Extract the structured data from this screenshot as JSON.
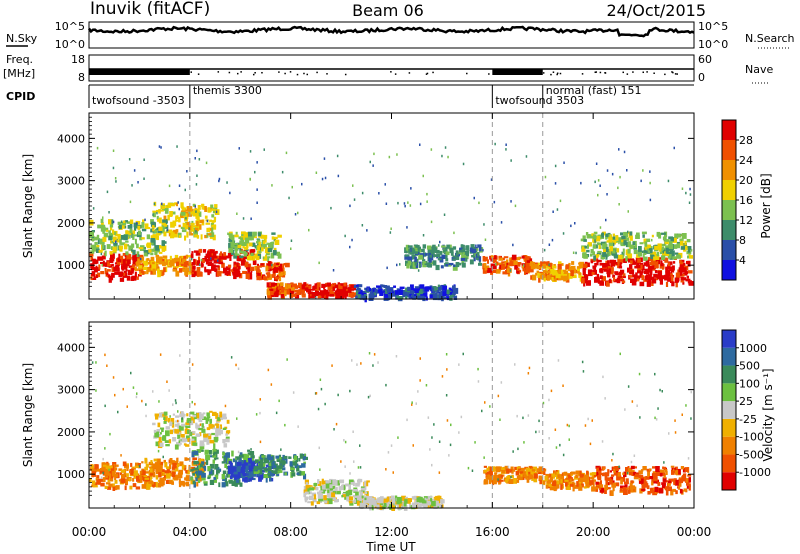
{
  "header": {
    "station": "Inuvik (fitACF)",
    "beam": "Beam 06",
    "date": "24/Oct/2015"
  },
  "time_axis": {
    "label": "Time UT",
    "ticks": [
      "00:00",
      "04:00",
      "08:00",
      "12:00",
      "16:00",
      "20:00",
      "00:00"
    ],
    "range_hours": [
      0,
      24
    ]
  },
  "noise_panel": {
    "left_label": "N.Sky",
    "right_label": "N.Search",
    "left_ticks": [
      "10^5",
      "10^0"
    ],
    "right_ticks": [
      "10^5",
      "10^0"
    ]
  },
  "freq_panel": {
    "left_label": "Freq.",
    "left_unit": "[MHz]",
    "left_ticks": [
      "18",
      "8"
    ],
    "right_label": "Nave",
    "right_ticks": [
      "60",
      "0"
    ]
  },
  "cpid_panel": {
    "label": "CPID",
    "segments": [
      {
        "name": "twofsound -3503",
        "start_h": 0.0
      },
      {
        "name": "themis 3300",
        "start_h": 4.0
      },
      {
        "name": "twofsound 3503",
        "start_h": 16.0
      },
      {
        "name": "normal (fast) 151",
        "start_h": 18.0
      }
    ]
  },
  "power_panel": {
    "ylabel": "Slant Range [km]",
    "yticks": [
      "1000",
      "2000",
      "3000",
      "4000"
    ],
    "colorbar_label": "Power [dB]",
    "colorbar_ticks": [
      "4",
      "8",
      "12",
      "16",
      "20",
      "24",
      "28"
    ],
    "colors": [
      "#1010e0",
      "#2a4fa8",
      "#3d8c6a",
      "#7cc050",
      "#f0d000",
      "#f09000",
      "#f05000",
      "#e00000"
    ]
  },
  "velocity_panel": {
    "ylabel": "Slant Range [km]",
    "yticks": [
      "1000",
      "2000",
      "3000",
      "4000"
    ],
    "colorbar_label": "Velocity [m s⁻¹]",
    "colorbar_ticks": [
      "1000",
      "500",
      "100",
      "25",
      "-25",
      "-100",
      "-500",
      "-1000"
    ],
    "colors": [
      "#2a3cc8",
      "#2e6aa0",
      "#3a8a5a",
      "#6cc040",
      "#c8c8c8",
      "#f0b000",
      "#f08000",
      "#f05000",
      "#e00000"
    ]
  },
  "chart_data": {
    "type": "heatmap",
    "x_unit": "hours UT",
    "y_unit": "km",
    "ylim": [
      200,
      4600
    ],
    "power_blobs": [
      {
        "t0": 0.0,
        "t1": 2.0,
        "r0": 700,
        "r1": 1300,
        "level": 7
      },
      {
        "t0": 0.0,
        "t1": 3.0,
        "r0": 1300,
        "r1": 2100,
        "level": 3
      },
      {
        "t0": 1.8,
        "t1": 4.0,
        "r0": 850,
        "r1": 1250,
        "level": 5
      },
      {
        "t0": 4.0,
        "t1": 6.5,
        "r0": 800,
        "r1": 1400,
        "level": 7
      },
      {
        "t0": 2.5,
        "t1": 5.0,
        "r0": 1700,
        "r1": 2500,
        "level": 4
      },
      {
        "t0": 5.5,
        "t1": 7.5,
        "r0": 1200,
        "r1": 1800,
        "level": 3
      },
      {
        "t0": 6.5,
        "t1": 7.8,
        "r0": 700,
        "r1": 1100,
        "level": 6
      },
      {
        "t0": 7.0,
        "t1": 8.5,
        "r0": 300,
        "r1": 600,
        "level": 6
      },
      {
        "t0": 8.5,
        "t1": 10.5,
        "r0": 300,
        "r1": 600,
        "level": 7
      },
      {
        "t0": 10.5,
        "t1": 14.5,
        "r0": 250,
        "r1": 550,
        "level": 1
      },
      {
        "t0": 12.5,
        "t1": 15.5,
        "r0": 1000,
        "r1": 1500,
        "level": 2
      },
      {
        "t0": 15.6,
        "t1": 17.5,
        "r0": 850,
        "r1": 1250,
        "level": 6
      },
      {
        "t0": 17.5,
        "t1": 19.5,
        "r0": 700,
        "r1": 1100,
        "level": 5
      },
      {
        "t0": 19.5,
        "t1": 23.8,
        "r0": 600,
        "r1": 1200,
        "level": 7
      },
      {
        "t0": 19.5,
        "t1": 23.8,
        "r0": 1200,
        "r1": 1800,
        "level": 3
      }
    ],
    "velocity_blobs": [
      {
        "t0": 0.0,
        "t1": 2.5,
        "r0": 700,
        "r1": 1300,
        "level": 6
      },
      {
        "t0": 2.5,
        "t1": 5.5,
        "r0": 1700,
        "r1": 2500,
        "level": 4
      },
      {
        "t0": 2.0,
        "t1": 4.5,
        "r0": 800,
        "r1": 1400,
        "level": 6
      },
      {
        "t0": 4.0,
        "t1": 6.5,
        "r0": 800,
        "r1": 1600,
        "level": 2
      },
      {
        "t0": 5.5,
        "t1": 7.2,
        "r0": 900,
        "r1": 1400,
        "level": 0
      },
      {
        "t0": 6.5,
        "t1": 8.5,
        "r0": 1000,
        "r1": 1500,
        "level": 2
      },
      {
        "t0": 8.5,
        "t1": 11.0,
        "r0": 350,
        "r1": 900,
        "level": 4
      },
      {
        "t0": 10.5,
        "t1": 14.0,
        "r0": 250,
        "r1": 500,
        "level": 4
      },
      {
        "t0": 15.6,
        "t1": 18.0,
        "r0": 850,
        "r1": 1200,
        "level": 6
      },
      {
        "t0": 18.0,
        "t1": 20.0,
        "r0": 700,
        "r1": 1100,
        "level": 6
      },
      {
        "t0": 20.0,
        "t1": 23.8,
        "r0": 600,
        "r1": 1200,
        "level": 7
      }
    ]
  }
}
